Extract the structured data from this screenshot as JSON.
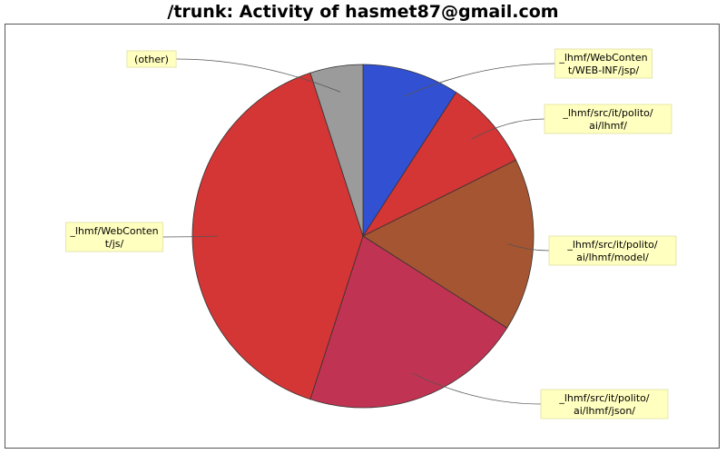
{
  "chart_data": {
    "type": "pie",
    "title": "/trunk: Activity of hasmet87@gmail.com",
    "slices": [
      {
        "label": "_lhmf/WebContent/WEB-INF/jsp/",
        "label_lines": [
          "_lhmf/WebConten",
          "t/WEB-INF/jsp/"
        ],
        "value": 9.2,
        "color": "#3150d2"
      },
      {
        "label": "_lhmf/src/it/polito/ai/lhmf/",
        "label_lines": [
          "_lhmf/src/it/polito/",
          "ai/lhmf/"
        ],
        "value": 8.5,
        "color": "#d43535"
      },
      {
        "label": "_lhmf/src/it/polito/ai/lhmf/model/",
        "label_lines": [
          "_lhmf/src/it/polito/",
          "ai/lhmf/model/"
        ],
        "value": 16.3,
        "color": "#a55531"
      },
      {
        "label": "_lhmf/src/it/polito/ai/lhmf/json/",
        "label_lines": [
          "_lhmf/src/it/polito/",
          "ai/lhmf/json/"
        ],
        "value": 21.0,
        "color": "#c13352"
      },
      {
        "label": "_lhmf/WebContent/js/",
        "label_lines": [
          "_lhmf/WebConten",
          "t/js/"
        ],
        "value": 40.0,
        "color": "#d43535"
      },
      {
        "label": "(other)",
        "label_lines": [
          "(other)"
        ],
        "value": 5.0,
        "color": "#9b9b9b"
      }
    ]
  }
}
